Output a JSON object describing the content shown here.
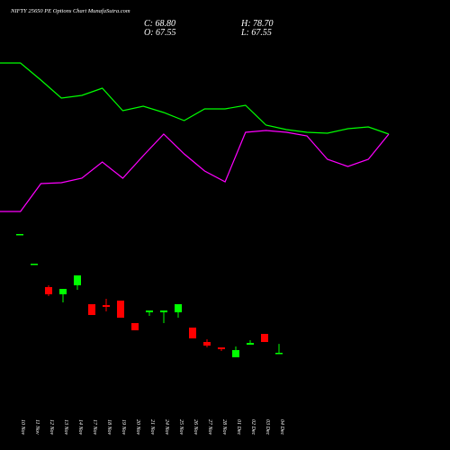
{
  "chart_data": [
    {
      "type": "candlestick",
      "title": "NIFTY 25650  PE Options  Chart MunafaSutra.com",
      "header": {
        "close": "C: 68.80",
        "high": "H: 78.70",
        "open": "O: 67.55",
        "low": "L: 67.55"
      },
      "categories": [
        "10 Nov",
        "11 Nov",
        "12 Nov",
        "13 Nov",
        "14 Nov",
        "17 Nov",
        "18 Nov",
        "19 Nov",
        "20 Nov",
        "21 Nov",
        "24 Nov",
        "25 Nov",
        "26 Nov",
        "27 Nov",
        "28 Nov",
        "01 Dec",
        "02 Dec",
        "03 Dec",
        "04 Dec"
      ],
      "open": [
        200.8,
        167.8,
        141.8,
        133.8,
        143.8,
        122.8,
        121.8,
        126.8,
        101.8,
        113.8,
        113.8,
        113.8,
        96.8,
        80.8,
        74.8,
        63.8,
        77.8,
        89.8,
        67.55
      ],
      "high": [
        200.8,
        167.8,
        143.8,
        139.8,
        154.8,
        122.8,
        128.8,
        126.8,
        101.8,
        115.8,
        115.8,
        122.8,
        96.8,
        83.8,
        74.8,
        75.8,
        82.8,
        89.8,
        78.7
      ],
      "low": [
        200.8,
        167.8,
        131.8,
        124.8,
        138.8,
        110.8,
        114.8,
        107.8,
        93.8,
        109.8,
        101.8,
        107.8,
        84.8,
        74.8,
        70.8,
        63.8,
        77.8,
        80.8,
        67.55
      ],
      "close": [
        200.8,
        167.8,
        133.8,
        139.8,
        154.8,
        110.8,
        119.8,
        107.8,
        93.8,
        115.8,
        115.8,
        122.8,
        84.8,
        76.8,
        72.8,
        71.8,
        79.8,
        80.8,
        68.8
      ],
      "up_color": "#00ff00",
      "down_color": "#ff0000",
      "ylim": [
        60,
        210
      ]
    },
    {
      "type": "line",
      "categories": [
        null,
        null,
        null,
        null,
        null,
        null,
        null,
        null,
        null,
        null,
        null,
        null,
        null,
        null,
        null,
        null,
        null,
        null,
        null,
        null
      ],
      "series": [
        {
          "color": "#00ff00",
          "values": [
            180,
            180,
            161,
            141,
            144,
            152,
            127,
            132,
            125,
            116,
            129,
            129,
            133,
            111,
            106,
            103,
            102,
            107,
            109,
            101
          ]
        },
        {
          "color": "#ff00ff",
          "values": [
            15,
            15,
            46,
            47,
            52,
            70,
            52,
            77,
            101,
            79,
            60,
            48,
            103,
            105,
            103,
            99,
            73,
            65,
            73,
            101
          ]
        }
      ],
      "ylim": [
        0,
        200
      ]
    }
  ]
}
